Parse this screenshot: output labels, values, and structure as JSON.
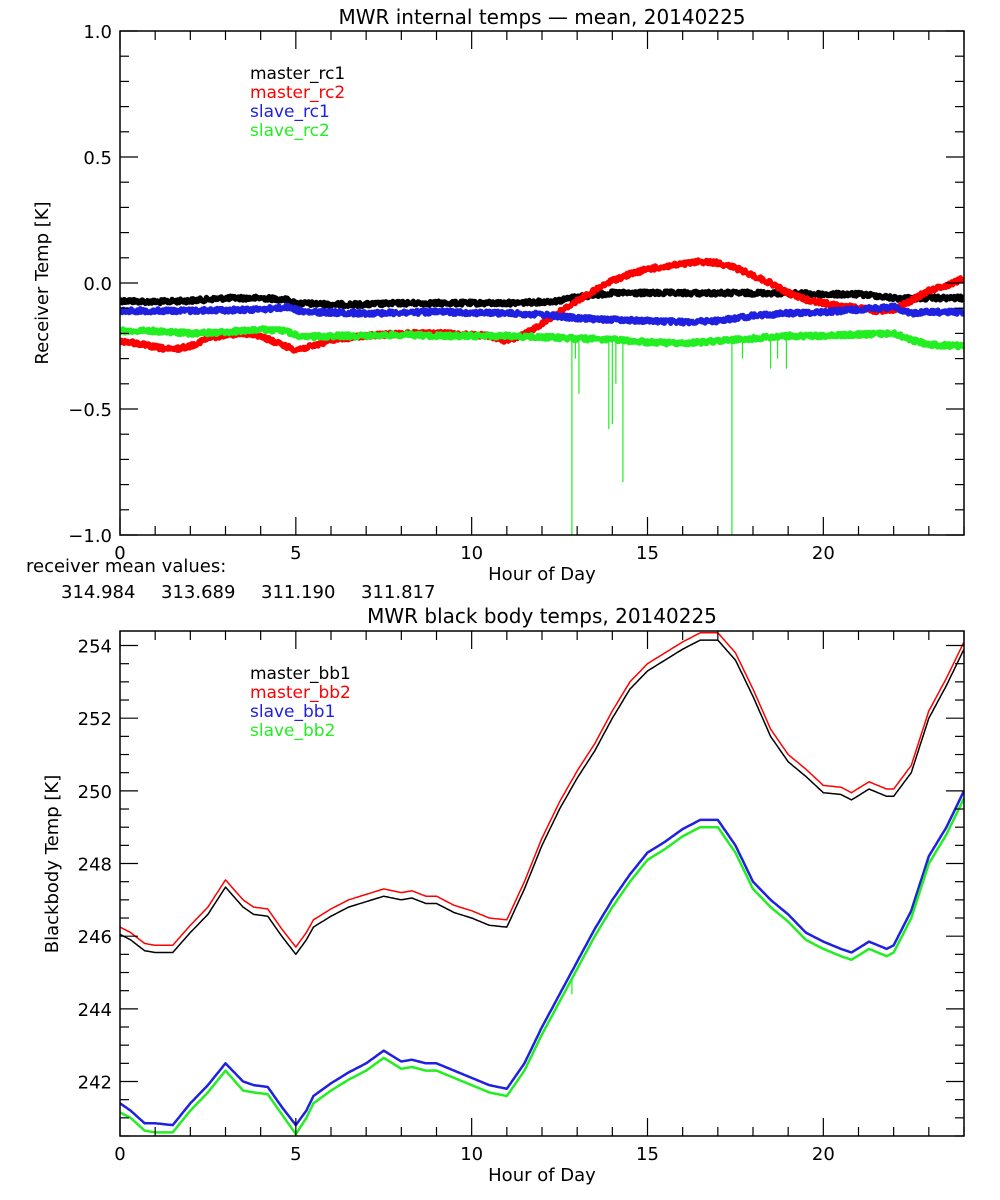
{
  "chart_data": [
    {
      "type": "line",
      "title": "MWR internal temps — mean, 20140225",
      "xlabel": "Hour of Day",
      "ylabel": "Receiver Temp [K]",
      "xlim": [
        0,
        24
      ],
      "ylim": [
        -1.0,
        1.0
      ],
      "xticks": [
        0,
        5,
        10,
        15,
        20
      ],
      "xtick_labels": [
        "0",
        "5",
        "10",
        "15",
        "20"
      ],
      "yticks": [
        -1.0,
        -0.5,
        0.0,
        0.5,
        1.0
      ],
      "ytick_labels": [
        "−1.0",
        "−0.5",
        "0.0",
        "0.5",
        "1.0"
      ],
      "x_minor_step": 1,
      "y_minor_step": 0.1,
      "grid": false,
      "legend_position": "top-left",
      "footer_label": "receiver mean values:",
      "series": [
        {
          "name": "master_rc1",
          "color": "#000000",
          "mean_value": "314.984",
          "x": [
            0,
            1,
            2,
            3,
            4,
            4.7,
            5,
            6,
            7,
            8,
            9,
            10,
            11,
            12,
            12.5,
            13,
            14,
            15,
            16,
            17,
            18,
            19,
            20,
            21,
            21.5,
            22,
            23,
            24
          ],
          "y": [
            -0.07,
            -0.075,
            -0.07,
            -0.06,
            -0.06,
            -0.065,
            -0.08,
            -0.085,
            -0.085,
            -0.08,
            -0.08,
            -0.08,
            -0.08,
            -0.075,
            -0.07,
            -0.055,
            -0.04,
            -0.04,
            -0.04,
            -0.04,
            -0.04,
            -0.04,
            -0.045,
            -0.045,
            -0.05,
            -0.06,
            -0.06,
            -0.06
          ]
        },
        {
          "name": "master_rc2",
          "color": "#ff0000",
          "mean_value": "313.689",
          "x": [
            0,
            0.5,
            1,
            1.5,
            2,
            2.5,
            3,
            3.5,
            4,
            4.5,
            5,
            5.5,
            6,
            7,
            8,
            9,
            10,
            10.5,
            11,
            11.5,
            12,
            12.5,
            13,
            13.5,
            14,
            14.5,
            15,
            16,
            16.5,
            17,
            17.5,
            18,
            18.5,
            19,
            19.5,
            20,
            21,
            21.5,
            22,
            22.5,
            23,
            23.5,
            24
          ],
          "y": [
            -0.23,
            -0.24,
            -0.255,
            -0.265,
            -0.25,
            -0.22,
            -0.205,
            -0.2,
            -0.21,
            -0.24,
            -0.265,
            -0.25,
            -0.225,
            -0.21,
            -0.2,
            -0.2,
            -0.205,
            -0.21,
            -0.23,
            -0.205,
            -0.16,
            -0.115,
            -0.07,
            -0.03,
            0.01,
            0.035,
            0.055,
            0.075,
            0.085,
            0.08,
            0.06,
            0.03,
            0.0,
            -0.04,
            -0.065,
            -0.08,
            -0.1,
            -0.11,
            -0.105,
            -0.07,
            -0.03,
            -0.01,
            0.02
          ]
        },
        {
          "name": "slave_rc1",
          "color": "#2020e0",
          "mean_value": "311.190",
          "x": [
            0,
            2,
            4,
            4.8,
            5.2,
            7,
            9,
            11,
            12,
            13,
            14,
            15,
            16,
            17,
            18,
            19,
            20,
            21,
            22,
            22.5,
            23,
            24
          ],
          "y": [
            -0.11,
            -0.11,
            -0.105,
            -0.095,
            -0.115,
            -0.12,
            -0.115,
            -0.12,
            -0.125,
            -0.14,
            -0.145,
            -0.15,
            -0.155,
            -0.15,
            -0.13,
            -0.12,
            -0.115,
            -0.105,
            -0.095,
            -0.12,
            -0.115,
            -0.115
          ]
        },
        {
          "name": "slave_rc2",
          "color": "#22ee22",
          "mean_value": "311.817",
          "x": [
            0,
            1,
            2,
            3,
            4,
            4.7,
            5.2,
            6,
            7,
            8,
            9,
            10,
            11,
            12,
            13,
            14,
            15,
            16,
            17,
            18,
            19,
            20,
            21,
            22,
            22.5,
            23,
            24
          ],
          "y": [
            -0.19,
            -0.19,
            -0.2,
            -0.195,
            -0.185,
            -0.19,
            -0.215,
            -0.21,
            -0.21,
            -0.205,
            -0.21,
            -0.21,
            -0.21,
            -0.215,
            -0.22,
            -0.225,
            -0.235,
            -0.24,
            -0.23,
            -0.22,
            -0.21,
            -0.21,
            -0.205,
            -0.2,
            -0.225,
            -0.245,
            -0.25
          ],
          "spikes": [
            {
              "x": 12.85,
              "y": -1.0
            },
            {
              "x": 12.95,
              "y": -0.3
            },
            {
              "x": 13.05,
              "y": -0.44
            },
            {
              "x": 13.9,
              "y": -0.58
            },
            {
              "x": 14.0,
              "y": -0.56
            },
            {
              "x": 14.1,
              "y": -0.4
            },
            {
              "x": 14.3,
              "y": -0.79
            },
            {
              "x": 17.4,
              "y": -1.0
            },
            {
              "x": 17.7,
              "y": -0.3
            },
            {
              "x": 18.5,
              "y": -0.34
            },
            {
              "x": 18.7,
              "y": -0.3
            },
            {
              "x": 18.95,
              "y": -0.34
            }
          ]
        }
      ]
    },
    {
      "type": "line",
      "title": "MWR black body temps, 20140225",
      "xlabel": "Hour of Day",
      "ylabel": "Blackbody Temp [K]",
      "xlim": [
        0,
        24
      ],
      "ylim": [
        240.5,
        254.4
      ],
      "xticks": [
        0,
        5,
        10,
        15,
        20
      ],
      "xtick_labels": [
        "0",
        "5",
        "10",
        "15",
        "20"
      ],
      "yticks": [
        242,
        244,
        246,
        248,
        250,
        252,
        254
      ],
      "ytick_labels": [
        "242",
        "244",
        "246",
        "248",
        "250",
        "252",
        "254"
      ],
      "x_minor_step": 1,
      "y_minor_step": 0.5,
      "grid": false,
      "legend_position": "top-left",
      "series": [
        {
          "name": "master_bb1",
          "color": "#000000",
          "x": [
            0,
            0.3,
            0.7,
            1.0,
            1.5,
            2.0,
            2.5,
            3.0,
            3.5,
            3.8,
            4.2,
            4.6,
            5.0,
            5.3,
            5.5,
            6.0,
            6.5,
            7.0,
            7.5,
            8.0,
            8.3,
            8.7,
            9.0,
            9.5,
            10.0,
            10.5,
            11.0,
            11.5,
            12.0,
            12.5,
            13.0,
            13.5,
            14.0,
            14.5,
            15.0,
            15.5,
            16.0,
            16.5,
            17.0,
            17.5,
            18.0,
            18.5,
            19.0,
            19.5,
            20.0,
            20.5,
            20.8,
            21.3,
            21.8,
            22.0,
            22.5,
            23.0,
            23.5,
            24.0
          ],
          "y": [
            246.05,
            245.9,
            245.6,
            245.55,
            245.55,
            246.1,
            246.6,
            247.35,
            246.8,
            246.6,
            246.55,
            246.0,
            245.5,
            245.9,
            246.25,
            246.55,
            246.8,
            246.95,
            247.1,
            247.0,
            247.05,
            246.9,
            246.9,
            246.65,
            246.5,
            246.3,
            246.25,
            247.3,
            248.5,
            249.5,
            250.35,
            251.1,
            252.0,
            252.8,
            253.3,
            253.6,
            253.9,
            254.15,
            254.15,
            253.6,
            252.6,
            251.5,
            250.8,
            250.4,
            249.95,
            249.9,
            249.75,
            250.05,
            249.85,
            249.85,
            250.5,
            252.0,
            252.9,
            253.9
          ]
        },
        {
          "name": "master_bb2",
          "color": "#ff0000",
          "x": [
            0,
            0.3,
            0.7,
            1.0,
            1.5,
            2.0,
            2.5,
            3.0,
            3.5,
            3.8,
            4.2,
            4.6,
            5.0,
            5.3,
            5.5,
            6.0,
            6.5,
            7.0,
            7.5,
            8.0,
            8.3,
            8.7,
            9.0,
            9.5,
            10.0,
            10.5,
            11.0,
            11.5,
            12.0,
            12.5,
            13.0,
            13.5,
            14.0,
            14.5,
            15.0,
            15.5,
            16.0,
            16.5,
            17.0,
            17.5,
            18.0,
            18.5,
            19.0,
            19.5,
            20.0,
            20.5,
            20.8,
            21.3,
            21.8,
            22.0,
            22.5,
            23.0,
            23.5,
            24.0
          ],
          "y": [
            246.25,
            246.1,
            245.8,
            245.75,
            245.75,
            246.3,
            246.8,
            247.55,
            247.0,
            246.8,
            246.75,
            246.2,
            245.7,
            246.1,
            246.45,
            246.75,
            247.0,
            247.15,
            247.3,
            247.2,
            247.25,
            247.1,
            247.1,
            246.85,
            246.7,
            246.5,
            246.45,
            247.5,
            248.7,
            249.7,
            250.55,
            251.3,
            252.2,
            253.0,
            253.5,
            253.8,
            254.1,
            254.35,
            254.35,
            253.8,
            252.8,
            251.7,
            251.0,
            250.6,
            250.15,
            250.1,
            249.95,
            250.25,
            250.05,
            250.05,
            250.7,
            252.2,
            253.1,
            254.1
          ]
        },
        {
          "name": "slave_bb1",
          "color": "#2020e0",
          "x": [
            0,
            0.3,
            0.7,
            1.0,
            1.5,
            2.0,
            2.5,
            3.0,
            3.5,
            3.8,
            4.2,
            4.6,
            5.0,
            5.3,
            5.5,
            6.0,
            6.5,
            7.0,
            7.5,
            8.0,
            8.3,
            8.7,
            9.0,
            9.5,
            10.0,
            10.5,
            11.0,
            11.5,
            12.0,
            12.5,
            13.0,
            13.5,
            14.0,
            14.5,
            15.0,
            15.5,
            16.0,
            16.5,
            17.0,
            17.5,
            18.0,
            18.5,
            19.0,
            19.5,
            20.0,
            20.5,
            20.8,
            21.3,
            21.8,
            22.0,
            22.5,
            23.0,
            23.5,
            24.0
          ],
          "y": [
            241.4,
            241.2,
            240.85,
            240.85,
            240.8,
            241.4,
            241.9,
            242.5,
            242.0,
            241.9,
            241.85,
            241.3,
            240.8,
            241.2,
            241.6,
            241.95,
            242.25,
            242.5,
            242.85,
            242.55,
            242.6,
            242.5,
            242.5,
            242.3,
            242.1,
            241.9,
            241.8,
            242.5,
            243.5,
            244.4,
            245.3,
            246.2,
            247.0,
            247.7,
            248.3,
            248.6,
            248.95,
            249.2,
            249.2,
            248.5,
            247.5,
            247.0,
            246.6,
            246.1,
            245.85,
            245.65,
            245.55,
            245.85,
            245.65,
            245.75,
            246.7,
            248.2,
            249.0,
            250.0
          ]
        },
        {
          "name": "slave_bb2",
          "color": "#22ee22",
          "x": [
            0,
            0.3,
            0.7,
            1.0,
            1.5,
            2.0,
            2.5,
            3.0,
            3.5,
            3.8,
            4.2,
            4.6,
            5.0,
            5.3,
            5.5,
            6.0,
            6.5,
            7.0,
            7.5,
            8.0,
            8.3,
            8.7,
            9.0,
            9.5,
            10.0,
            10.5,
            11.0,
            11.5,
            12.0,
            12.5,
            13.0,
            13.5,
            14.0,
            14.5,
            15.0,
            15.5,
            16.0,
            16.5,
            17.0,
            17.5,
            18.0,
            18.5,
            19.0,
            19.5,
            20.0,
            20.5,
            20.8,
            21.3,
            21.8,
            22.0,
            22.5,
            23.0,
            23.5,
            24.0
          ],
          "y": [
            241.15,
            241.0,
            240.65,
            240.6,
            240.6,
            241.2,
            241.7,
            242.3,
            241.75,
            241.7,
            241.65,
            241.1,
            240.55,
            241.0,
            241.4,
            241.75,
            242.05,
            242.3,
            242.65,
            242.35,
            242.4,
            242.3,
            242.3,
            242.1,
            241.9,
            241.7,
            241.6,
            242.3,
            243.3,
            244.2,
            245.1,
            246.0,
            246.8,
            247.5,
            248.1,
            248.4,
            248.75,
            249.0,
            249.0,
            248.3,
            247.3,
            246.8,
            246.4,
            245.9,
            245.65,
            245.45,
            245.35,
            245.65,
            245.45,
            245.55,
            246.5,
            248.0,
            248.8,
            249.8
          ],
          "spikes": [
            {
              "x": 12.85,
              "y": 244.4
            }
          ]
        }
      ]
    }
  ]
}
